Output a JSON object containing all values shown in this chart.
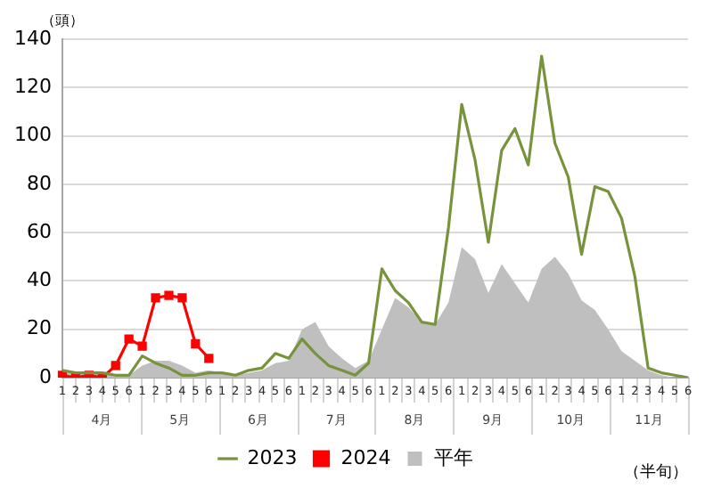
{
  "chart_data": {
    "type": "line",
    "ylabel": "（頭）",
    "xlabel": "（半旬）",
    "categories": [
      "1",
      "2",
      "3",
      "4",
      "5",
      "6",
      "1",
      "2",
      "3",
      "4",
      "5",
      "6",
      "1",
      "2",
      "3",
      "4",
      "5",
      "6",
      "1",
      "2",
      "3",
      "4",
      "5",
      "6",
      "1",
      "2",
      "3",
      "4",
      "5",
      "6",
      "1",
      "2",
      "3",
      "4",
      "5",
      "6",
      "1",
      "2",
      "3",
      "4",
      "5",
      "6",
      "1",
      "2",
      "3",
      "4",
      "5",
      "6"
    ],
    "annotations": [
      "4月",
      "5月",
      "6月",
      "7月",
      "8月",
      "9月",
      "10月",
      "11月"
    ],
    "series": [
      {
        "name": "平年",
        "type": "area",
        "color": "#bfbfbf",
        "marker": "none",
        "values": [
          2,
          2,
          2,
          2,
          1,
          1,
          5,
          7,
          7,
          5,
          2,
          3,
          2,
          1,
          2,
          3,
          6,
          7,
          20,
          23,
          13,
          8,
          4,
          7,
          20,
          33,
          29,
          23,
          22,
          31,
          54,
          49,
          35,
          47,
          39,
          31,
          45,
          50,
          43,
          32,
          28,
          20,
          11,
          7,
          3,
          1,
          0,
          0
        ]
      },
      {
        "name": "2023",
        "type": "line",
        "color": "#77933c",
        "marker": "none",
        "values": [
          3,
          2,
          2,
          2,
          1,
          1,
          9,
          6,
          4,
          1,
          1,
          2,
          2,
          1,
          3,
          4,
          10,
          8,
          16,
          10,
          5,
          3,
          1,
          6,
          45,
          36,
          31,
          23,
          22,
          62,
          113,
          90,
          56,
          94,
          103,
          88,
          133,
          97,
          83,
          51,
          79,
          77,
          66,
          42,
          4,
          2,
          1,
          0
        ]
      },
      {
        "name": "2024",
        "type": "line",
        "color": "#ff0000",
        "marker": "square",
        "values": [
          1,
          0,
          1,
          0,
          5,
          16,
          13,
          33,
          34,
          33,
          14,
          8,
          null,
          null,
          null,
          null,
          null,
          null,
          null,
          null,
          null,
          null,
          null,
          null,
          null,
          null,
          null,
          null,
          null,
          null,
          null,
          null,
          null,
          null,
          null,
          null,
          null,
          null,
          null,
          null,
          null,
          null,
          null,
          null,
          null,
          null,
          null,
          null
        ]
      }
    ],
    "ylim": [
      0,
      140
    ],
    "yticks": [
      0,
      20,
      40,
      60,
      80,
      100,
      120,
      140
    ],
    "grid": "y",
    "legend": "bottom"
  }
}
